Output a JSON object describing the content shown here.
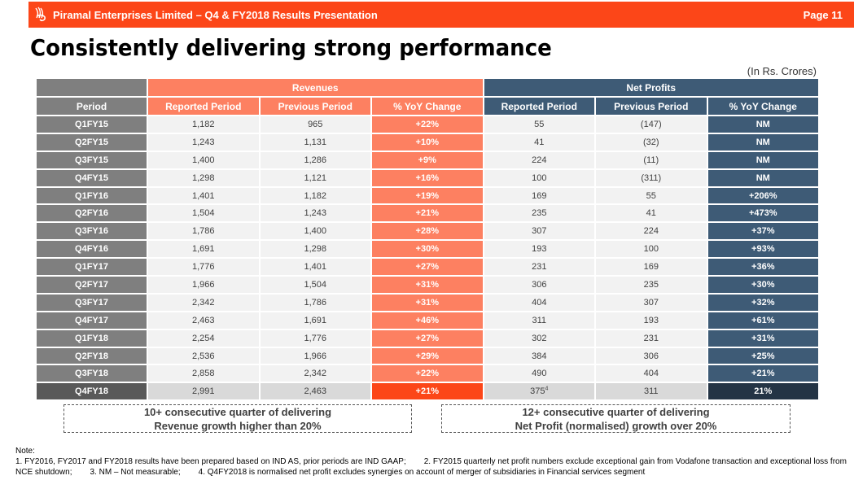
{
  "header": {
    "company_title": "Piramal Enterprises Limited – Q4 & FY2018 Results Presentation",
    "page_label": "Page 11",
    "logo_icon": "piramal-logo-icon"
  },
  "slide": {
    "title": "Consistently delivering strong performance",
    "units": "(In Rs. Crores)"
  },
  "colors": {
    "brand_orange": "#fc4618",
    "revenue_header": "#fd8061",
    "net_profit_header": "#3e5b76",
    "period_grey": "#7f7f7f"
  },
  "table": {
    "group_headers": {
      "revenues": "Revenues",
      "net_profits": "Net Profits"
    },
    "columns": [
      "Period",
      "Reported Period",
      "Previous Period",
      "% YoY Change",
      "Reported Period",
      "Previous Period",
      "%  YoY Change"
    ],
    "rows": [
      {
        "period": "Q1FY15",
        "rev_reported": "1,182",
        "rev_previous": "965",
        "rev_yoy": "+22%",
        "np_reported": "55",
        "np_reported_sup": "",
        "np_previous": "(147)",
        "np_yoy": "NM"
      },
      {
        "period": "Q2FY15",
        "rev_reported": "1,243",
        "rev_previous": "1,131",
        "rev_yoy": "+10%",
        "np_reported": "41",
        "np_reported_sup": "",
        "np_previous": "(32)",
        "np_yoy": "NM"
      },
      {
        "period": "Q3FY15",
        "rev_reported": "1,400",
        "rev_previous": "1,286",
        "rev_yoy": "+9%",
        "np_reported": "224",
        "np_reported_sup": "",
        "np_previous": "(11)",
        "np_yoy": "NM"
      },
      {
        "period": "Q4FY15",
        "rev_reported": "1,298",
        "rev_previous": "1,121",
        "rev_yoy": "+16%",
        "np_reported": "100",
        "np_reported_sup": "",
        "np_previous": "(311)",
        "np_yoy": "NM"
      },
      {
        "period": "Q1FY16",
        "rev_reported": "1,401",
        "rev_previous": "1,182",
        "rev_yoy": "+19%",
        "np_reported": "169",
        "np_reported_sup": "",
        "np_previous": "55",
        "np_yoy": "+206%"
      },
      {
        "period": "Q2FY16",
        "rev_reported": "1,504",
        "rev_previous": "1,243",
        "rev_yoy": "+21%",
        "np_reported": "235",
        "np_reported_sup": "",
        "np_previous": "41",
        "np_yoy": "+473%"
      },
      {
        "period": "Q3FY16",
        "rev_reported": "1,786",
        "rev_previous": "1,400",
        "rev_yoy": "+28%",
        "np_reported": "307",
        "np_reported_sup": "",
        "np_previous": "224",
        "np_yoy": "+37%"
      },
      {
        "period": "Q4FY16",
        "rev_reported": "1,691",
        "rev_previous": "1,298",
        "rev_yoy": "+30%",
        "np_reported": "193",
        "np_reported_sup": "",
        "np_previous": "100",
        "np_yoy": "+93%"
      },
      {
        "period": "Q1FY17",
        "rev_reported": "1,776",
        "rev_previous": "1,401",
        "rev_yoy": "+27%",
        "np_reported": "231",
        "np_reported_sup": "",
        "np_previous": "169",
        "np_yoy": "+36%"
      },
      {
        "period": "Q2FY17",
        "rev_reported": "1,966",
        "rev_previous": "1,504",
        "rev_yoy": "+31%",
        "np_reported": "306",
        "np_reported_sup": "",
        "np_previous": "235",
        "np_yoy": "+30%"
      },
      {
        "period": "Q3FY17",
        "rev_reported": "2,342",
        "rev_previous": "1,786",
        "rev_yoy": "+31%",
        "np_reported": "404",
        "np_reported_sup": "",
        "np_previous": "307",
        "np_yoy": "+32%"
      },
      {
        "period": "Q4FY17",
        "rev_reported": "2,463",
        "rev_previous": "1,691",
        "rev_yoy": "+46%",
        "np_reported": "311",
        "np_reported_sup": "",
        "np_previous": "193",
        "np_yoy": "+61%"
      },
      {
        "period": "Q1FY18",
        "rev_reported": "2,254",
        "rev_previous": "1,776",
        "rev_yoy": "+27%",
        "np_reported": "302",
        "np_reported_sup": "",
        "np_previous": "231",
        "np_yoy": "+31%"
      },
      {
        "period": "Q2FY18",
        "rev_reported": "2,536",
        "rev_previous": "1,966",
        "rev_yoy": "+29%",
        "np_reported": "384",
        "np_reported_sup": "",
        "np_previous": "306",
        "np_yoy": "+25%"
      },
      {
        "period": "Q3FY18",
        "rev_reported": "2,858",
        "rev_previous": "2,342",
        "rev_yoy": "+22%",
        "np_reported": "490",
        "np_reported_sup": "",
        "np_previous": "404",
        "np_yoy": "+21%"
      },
      {
        "period": "Q4FY18",
        "rev_reported": "2,991",
        "rev_previous": "2,463",
        "rev_yoy": "+21%",
        "np_reported": "375",
        "np_reported_sup": "4",
        "np_previous": "311",
        "np_yoy": "21%"
      }
    ]
  },
  "callouts": {
    "revenue": {
      "line1": "10+ consecutive quarter of delivering",
      "line2": "Revenue growth higher than 20%"
    },
    "net_profit": {
      "line1": "12+ consecutive quarter of delivering",
      "line2": "Net Profit (normalised) growth over 20%"
    }
  },
  "notes": {
    "heading": "Note:",
    "note1": "1. FY2016, FY2017 and FY2018 results have been prepared based on IND AS, prior periods are IND GAAP;",
    "note2": "2. FY2015 quarterly net profit numbers exclude exceptional gain from Vodafone transaction and exceptional loss from NCE shutdown;",
    "note3": "3.  NM – Not measurable;",
    "note4": "4.  Q4FY2018 is normalised net profit excludes synergies on account of merger of subsidiaries in Financial services segment"
  }
}
